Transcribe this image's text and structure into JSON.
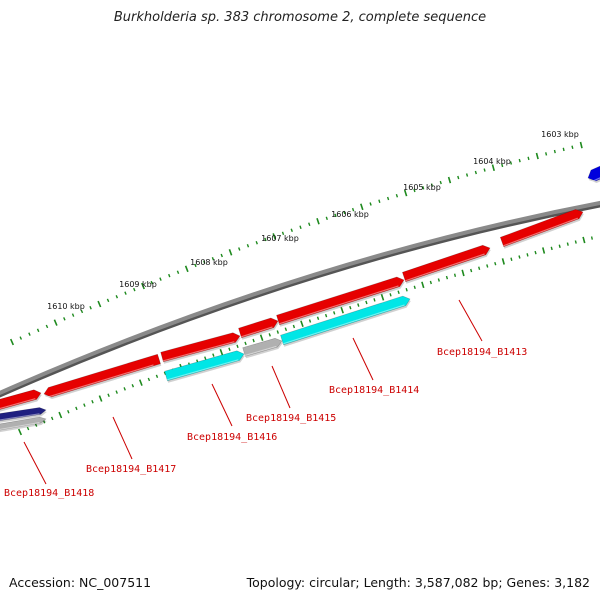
{
  "title": "Burkholderia sp. 383 chromosome 2, complete sequence",
  "footer": {
    "accession": "Accession: NC_007511",
    "summary": "Topology: circular; Length: 3,587,082 bp; Genes: 3,182"
  },
  "colors": {
    "backbone": "#8a8a8a",
    "tick": "#1e8a1e",
    "gene_forward": "#e60000",
    "cds_cyan": "#00e6e6",
    "gene_blue": "#0000dd",
    "gene_navy": "#202080",
    "pseudo_gray": "#b0b0b0",
    "label": "#cc0000"
  },
  "kbp_labels": [
    "1603 kbp",
    "1604 kbp",
    "1605 kbp",
    "1606 kbp",
    "1607 kbp",
    "1608 kbp",
    "1609 kbp",
    "1610 kbp"
  ],
  "gene_labels": [
    "Bcep18194_B1413",
    "Bcep18194_B1414",
    "Bcep18194_B1415",
    "Bcep18194_B1416",
    "Bcep18194_B1417",
    "Bcep18194_B1418"
  ]
}
